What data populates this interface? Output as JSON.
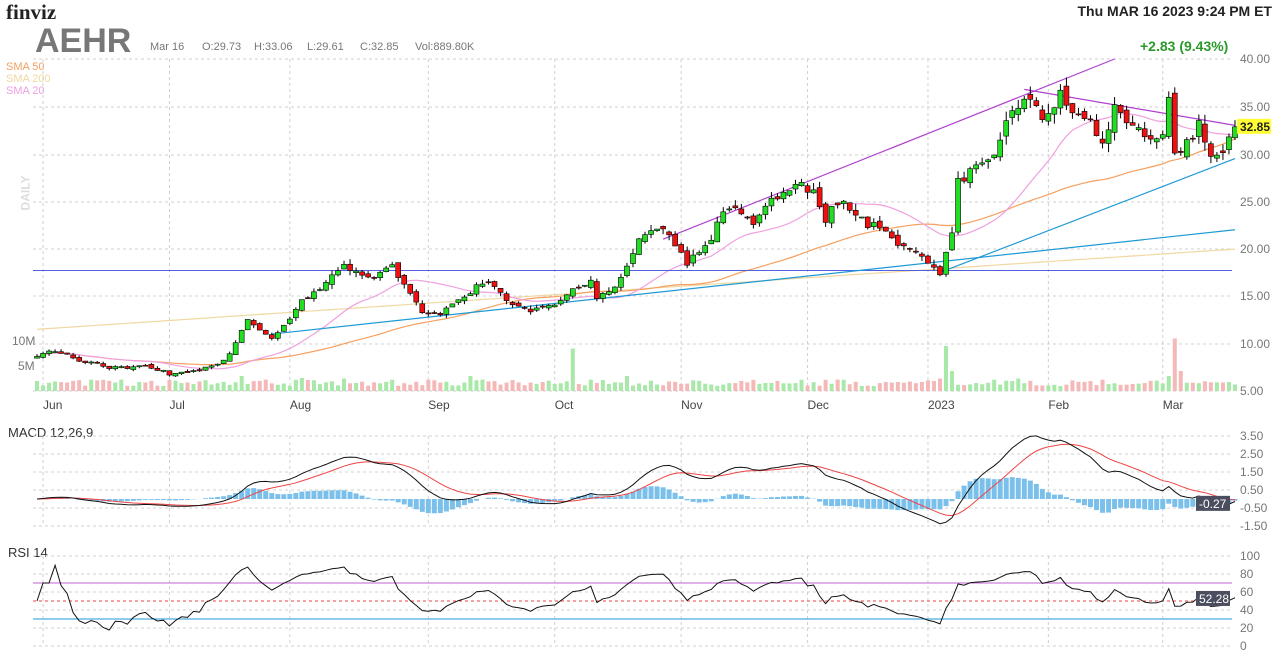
{
  "header": {
    "logo": "finviz",
    "datetime": "Thu MAR 16 2023 9:24 PM ET",
    "ticker": "AEHR",
    "date": "Mar 16",
    "open": "O:29.73",
    "high": "H:33.06",
    "low": "L:29.61",
    "close": "C:32.85",
    "volume": "Vol:889.80K",
    "change": "+2.83 (9.43%)"
  },
  "legend": [
    {
      "label": "SMA 50",
      "color": "#f5a060"
    },
    {
      "label": "SMA 200",
      "color": "#f0d8a0"
    },
    {
      "label": "SMA 20",
      "color": "#f0a0e0"
    }
  ],
  "daily_label": "DAILY",
  "colors": {
    "up": "#22dd22",
    "down": "#ee1111",
    "grid": "#d0d0d0",
    "macd": "#111111",
    "signal": "#ee4444",
    "hist": "#7ac0ea",
    "rsi": "#111111"
  },
  "chart_data": [
    {
      "type": "candlestick",
      "title": "AEHR Daily",
      "ylim": [
        5,
        40
      ],
      "yticks": [
        "40.00",
        "35.00",
        "30.00",
        "25.00",
        "20.00",
        "15.00",
        "10.00",
        "5.00"
      ],
      "xticks": [
        "Jun",
        "Jul",
        "Aug",
        "Sep",
        "Oct",
        "Nov",
        "Dec",
        "2023",
        "Feb",
        "Mar"
      ],
      "last_price": "32.85",
      "num_days": 200,
      "close_anchors": [
        [
          0,
          8.5
        ],
        [
          2,
          9.2
        ],
        [
          5,
          9.0
        ],
        [
          7,
          8.3
        ],
        [
          10,
          7.8
        ],
        [
          12,
          7.5
        ],
        [
          15,
          7.5
        ],
        [
          17,
          7.7
        ],
        [
          20,
          7.3
        ],
        [
          22,
          6.8
        ],
        [
          25,
          7.0
        ],
        [
          27,
          7.2
        ],
        [
          30,
          7.8
        ],
        [
          32,
          9.0
        ],
        [
          34,
          11.5
        ],
        [
          35,
          12.5
        ],
        [
          37,
          11.5
        ],
        [
          39,
          10.5
        ],
        [
          40,
          11.0
        ],
        [
          42,
          12.5
        ],
        [
          44,
          14.5
        ],
        [
          46,
          15.5
        ],
        [
          49,
          17.0
        ],
        [
          51,
          18.0
        ],
        [
          54,
          17.0
        ],
        [
          56,
          17.0
        ],
        [
          59,
          18.0
        ],
        [
          60,
          17.0
        ],
        [
          62,
          15.0
        ],
        [
          64,
          13.5
        ],
        [
          67,
          13.0
        ],
        [
          69,
          14.0
        ],
        [
          72,
          15.5
        ],
        [
          74,
          16.5
        ],
        [
          77,
          15.5
        ],
        [
          79,
          14.0
        ],
        [
          82,
          13.5
        ],
        [
          84,
          14.0
        ],
        [
          87,
          14.5
        ],
        [
          89,
          16.0
        ],
        [
          92,
          16.5
        ],
        [
          93,
          15.0
        ],
        [
          96,
          16.0
        ],
        [
          98,
          18.0
        ],
        [
          100,
          21.0
        ],
        [
          103,
          22.5
        ],
        [
          105,
          21.5
        ],
        [
          108,
          18.5
        ],
        [
          110,
          19.5
        ],
        [
          112,
          21.0
        ],
        [
          114,
          24.0
        ],
        [
          117,
          24.0
        ],
        [
          119,
          23.0
        ],
        [
          122,
          25.0
        ],
        [
          124,
          26.0
        ],
        [
          127,
          26.5
        ],
        [
          129,
          26.0
        ],
        [
          131,
          23.0
        ],
        [
          133,
          25.0
        ],
        [
          136,
          24.0
        ],
        [
          138,
          22.5
        ],
        [
          141,
          22.0
        ],
        [
          143,
          20.5
        ],
        [
          146,
          20.0
        ],
        [
          148,
          18.5
        ],
        [
          150,
          17.5
        ],
        [
          152,
          21.5
        ],
        [
          153,
          27.0
        ],
        [
          156,
          28.5
        ],
        [
          158,
          29.0
        ],
        [
          161,
          33.0
        ],
        [
          163,
          35.5
        ],
        [
          165,
          36.0
        ],
        [
          167,
          34.0
        ],
        [
          170,
          36.0
        ],
        [
          172,
          34.5
        ],
        [
          175,
          33.0
        ],
        [
          177,
          31.0
        ],
        [
          179,
          34.5
        ],
        [
          182,
          33.0
        ],
        [
          184,
          31.5
        ],
        [
          187,
          32.0
        ],
        [
          188,
          35.5
        ],
        [
          189,
          30.0
        ],
        [
          192,
          31.5
        ],
        [
          193,
          33.0
        ],
        [
          195,
          30.0
        ],
        [
          197,
          30.5
        ],
        [
          199,
          32.85
        ]
      ],
      "volume_ticks": [
        "10M",
        "5M"
      ],
      "volume_spikes_M": [
        [
          0,
          2
        ],
        [
          34,
          3
        ],
        [
          44,
          2.6
        ],
        [
          51,
          2.5
        ],
        [
          72,
          3
        ],
        [
          89,
          8.5
        ],
        [
          98,
          3
        ],
        [
          150,
          2.5
        ],
        [
          151,
          9
        ],
        [
          152,
          4
        ],
        [
          163,
          2.5
        ],
        [
          188,
          3
        ],
        [
          189,
          10.5
        ],
        [
          190,
          4
        ]
      ],
      "trendlines": [
        {
          "from": [
            39,
            11
          ],
          "to": [
            199,
            22
          ],
          "color": "#1e9ad6"
        },
        {
          "from": [
            150,
            17.5
          ],
          "to": [
            199,
            29.5
          ],
          "color": "#1e9ad6"
        },
        {
          "from": [
            104,
            21
          ],
          "to": [
            179,
            40
          ],
          "color": "#b040d0"
        },
        {
          "from": [
            164,
            36.8
          ],
          "to": [
            199,
            33
          ],
          "color": "#b040d0"
        }
      ],
      "hline": {
        "value": 17.7,
        "color": "#5060e0"
      }
    },
    {
      "type": "line",
      "title": "MACD 12,26,9",
      "ylim": [
        -1.5,
        3.5
      ],
      "yticks": [
        "3.50",
        "2.50",
        "1.50",
        "0.50",
        "-0.50",
        "-1.50"
      ],
      "last_value": "-0.27"
    },
    {
      "type": "line",
      "title": "RSI 14",
      "ylim": [
        0,
        100
      ],
      "yticks": [
        "100",
        "80",
        "60",
        "40",
        "20",
        "0"
      ],
      "overbought": 70,
      "oversold": 30,
      "last_value": "52.28"
    }
  ]
}
